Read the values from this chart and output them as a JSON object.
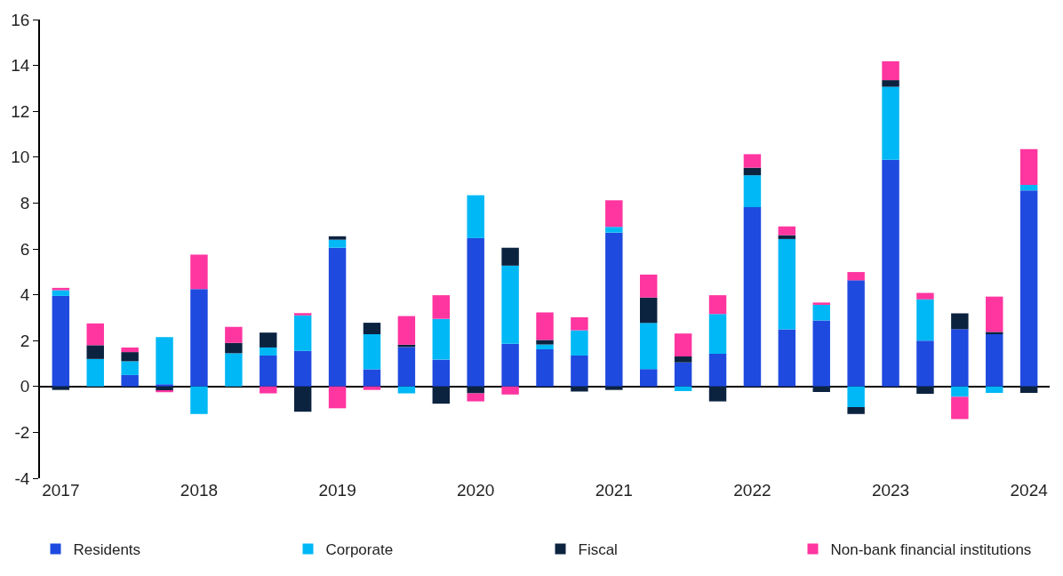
{
  "chart_data": {
    "type": "bar",
    "stacked": true,
    "categories": [
      "2017",
      null,
      null,
      null,
      "2018",
      null,
      null,
      null,
      "2019",
      null,
      null,
      null,
      "2020",
      null,
      null,
      null,
      "2021",
      null,
      null,
      null,
      "2022",
      null,
      null,
      null,
      "2023",
      null,
      null,
      null,
      "2024"
    ],
    "series": [
      {
        "name": "Residents",
        "color": "#1f4adf",
        "values": [
          3.95,
          null,
          0.5,
          0.1,
          4.25,
          null,
          1.35,
          1.55,
          6.05,
          0.75,
          1.72,
          1.17,
          6.47,
          1.86,
          1.62,
          1.35,
          6.71,
          0.76,
          1.05,
          1.43,
          7.82,
          2.49,
          2.88,
          4.63,
          9.89,
          2.0,
          2.5,
          2.28,
          8.55
        ]
      },
      {
        "name": "Corporate",
        "color": "#00b8f5",
        "values": [
          0.25,
          1.2,
          0.6,
          2.05,
          -1.2,
          1.45,
          0.35,
          1.55,
          0.35,
          1.53,
          -0.3,
          1.78,
          1.87,
          3.41,
          0.21,
          1.1,
          0.25,
          2.01,
          -0.2,
          1.73,
          1.39,
          3.94,
          0.68,
          -0.9,
          3.18,
          1.8,
          -0.45,
          -0.28,
          0.24
        ]
      },
      {
        "name": "Fiscal",
        "color": "#0c2340",
        "values": [
          -0.15,
          0.6,
          0.4,
          -0.2,
          null,
          0.45,
          0.65,
          -1.1,
          0.15,
          0.5,
          0.1,
          -0.75,
          -0.3,
          0.78,
          0.2,
          -0.22,
          -0.15,
          1.11,
          0.26,
          -0.65,
          0.33,
          0.17,
          -0.24,
          -0.3,
          0.29,
          -0.32,
          0.69,
          0.1,
          -0.28
        ]
      },
      {
        "name": "Non-bank financial institutions",
        "color": "#ff35a0",
        "values": [
          0.1,
          0.95,
          0.2,
          -0.05,
          1.5,
          0.7,
          -0.3,
          0.1,
          -0.95,
          -0.15,
          1.25,
          1.03,
          -0.35,
          -0.35,
          1.2,
          0.57,
          1.16,
          1.0,
          1.0,
          0.82,
          0.59,
          0.38,
          0.1,
          0.36,
          0.82,
          0.28,
          -0.97,
          1.54,
          1.56
        ]
      }
    ],
    "ylim": [
      -4,
      16
    ],
    "yticks": [
      -4,
      -2,
      0,
      2,
      4,
      6,
      8,
      10,
      12,
      14,
      16
    ],
    "legend": "bottom"
  }
}
